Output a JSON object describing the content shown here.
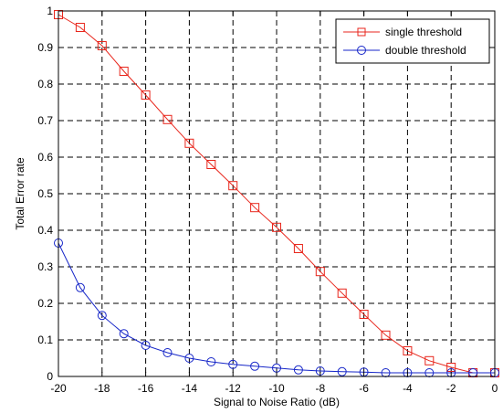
{
  "chart_data": {
    "type": "line",
    "title": "",
    "xlabel": "Signal to Noise Ratio (dB)",
    "ylabel": "Total Error rate",
    "xlim": [
      -20,
      0
    ],
    "ylim": [
      0,
      1
    ],
    "x_ticks": [
      "-20",
      "-18",
      "-16",
      "-14",
      "-12",
      "-10",
      "-8",
      "-6",
      "-4",
      "-2",
      "0"
    ],
    "y_ticks": [
      "0",
      "0.1",
      "0.2",
      "0.3",
      "0.4",
      "0.5",
      "0.6",
      "0.7",
      "0.8",
      "0.9",
      "1"
    ],
    "grid": true,
    "legend_position": "top-right",
    "x": [
      -20,
      -19,
      -18,
      -17,
      -16,
      -15,
      -14,
      -13,
      -12,
      -11,
      -10,
      -9,
      -8,
      -7,
      -6,
      -5,
      -4,
      -3,
      -2,
      -1,
      0
    ],
    "series": [
      {
        "name": "single threshold",
        "color": "#e8261c",
        "marker": "square",
        "values": [
          0.99,
          0.955,
          0.905,
          0.835,
          0.77,
          0.703,
          0.638,
          0.58,
          0.522,
          0.462,
          0.408,
          0.35,
          0.287,
          0.228,
          0.17,
          0.113,
          0.07,
          0.043,
          0.025,
          0.01,
          0.01
        ]
      },
      {
        "name": "double threshold",
        "color": "#1626c8",
        "marker": "circle",
        "values": [
          0.365,
          0.243,
          0.167,
          0.117,
          0.085,
          0.065,
          0.05,
          0.04,
          0.033,
          0.028,
          0.023,
          0.018,
          0.015,
          0.013,
          0.012,
          0.01,
          0.01,
          0.01,
          0.01,
          0.01,
          0.01
        ]
      }
    ]
  }
}
